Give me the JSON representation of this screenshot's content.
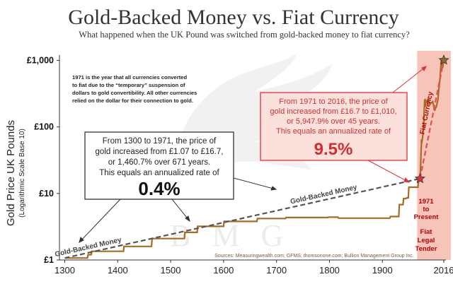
{
  "chart_data": {
    "type": "line",
    "title": "Gold-Backed Money vs. Fiat Currency",
    "subtitle": "What happened when the UK Pound was switched from gold-backed money to fiat currency?",
    "ylabel": "Gold Price UK Pounds",
    "ylabel_sub": "(Logarithmic Scale Base 10)",
    "y_scale": "log10",
    "ylim": [
      1,
      1200
    ],
    "xlim": [
      1290,
      2020
    ],
    "x_ticks": [
      "1300",
      "1400",
      "1500",
      "1600",
      "1700",
      "1800",
      "1900",
      "2016"
    ],
    "x_tick_values": [
      1300,
      1400,
      1500,
      1600,
      1700,
      1800,
      1900,
      2016
    ],
    "y_ticks": [
      "£1",
      "£10",
      "£100",
      "£1,000"
    ],
    "y_tick_values": [
      1,
      10,
      100,
      1000
    ],
    "grid": false,
    "series": [
      {
        "color": "#a86b22",
        "x": [
          1300,
          1343,
          1344,
          1350,
          1351,
          1411,
          1412,
          1464,
          1465,
          1526,
          1527,
          1550,
          1551,
          1600,
          1601,
          1663,
          1664,
          1717,
          1718,
          1797,
          1798,
          1816,
          1817,
          1914,
          1915,
          1931,
          1932,
          1939,
          1940,
          1945,
          1946,
          1949,
          1950,
          1967,
          1968,
          1971,
          1972,
          1973,
          1974,
          1975,
          1976,
          1978,
          1979,
          1980,
          1981,
          1982,
          1985,
          1986,
          1990,
          1995,
          1999,
          2000,
          2002,
          2005,
          2006,
          2008,
          2009,
          2011,
          2012,
          2014,
          2016
        ],
        "y": [
          1.07,
          1.07,
          1.2,
          1.2,
          1.35,
          1.35,
          1.6,
          1.6,
          2.1,
          2.1,
          2.6,
          2.6,
          3.2,
          3.2,
          3.8,
          3.8,
          4.2,
          4.2,
          4.35,
          4.35,
          4.4,
          4.4,
          4.25,
          4.25,
          4.5,
          4.5,
          6.8,
          6.8,
          8.4,
          8.4,
          8.6,
          8.6,
          12.4,
          12.4,
          14.6,
          16.7,
          23,
          40,
          65,
          62,
          70,
          100,
          180,
          260,
          200,
          250,
          230,
          260,
          220,
          240,
          175,
          190,
          200,
          260,
          330,
          460,
          560,
          980,
          1080,
          780,
          1010
        ]
      },
      {
        "name": "Gold-Backed Money",
        "style": "dashed",
        "color": "#555555",
        "x": [
          1300,
          1971
        ],
        "y": [
          1.07,
          16.7
        ]
      },
      {
        "name": "Fiat Currency",
        "style": "dashed",
        "color": "#e05050",
        "x": [
          1971,
          2016
        ],
        "y": [
          16.7,
          1010
        ]
      }
    ],
    "markers": [
      {
        "x": 1971,
        "y": 16.7,
        "color": "#e0303a"
      },
      {
        "x": 2016,
        "y": 1010,
        "color": "#8a6a2a"
      }
    ],
    "fiat_band": {
      "from": 1971,
      "to": 2016,
      "color": "#f6c4b8"
    },
    "annotations": {
      "note_1971": [
        "1971 is the year that all currencies converted",
        "to fiat due to the “temporary” suspension of",
        "dollars to gold convertibility.  All other currencies",
        "relied on the dollar for their connection to gold."
      ],
      "box_gold": {
        "lines": [
          "From 1300 to 1971, the price of",
          "gold increased from £1.07 to £16.7,",
          "or 1,460.7% over 671 years.",
          "This equals an annualized rate of"
        ],
        "rate": "0.4%"
      },
      "box_fiat": {
        "lines": [
          "From 1971 to 2016, the price of",
          "gold increased from £16.7 to £1,010,",
          "or 5,947.9% over 45 years.",
          "This equals an annualized rate of"
        ],
        "rate": "9.5%"
      },
      "band_text": [
        "1971",
        "to",
        "Present",
        "Fiat",
        "Legal",
        "Tender"
      ],
      "sources": "Sources: Measuringwealth.com; GFMS; thomsonone.com; Bullion Management Group Inc.",
      "watermark": "BMG"
    },
    "colors": {
      "gold_line": "#a86b22",
      "fiat_band": "#f6c4b8",
      "red_accent": "#e0303a",
      "box_fiat_bg": "#fbe0dc"
    }
  }
}
